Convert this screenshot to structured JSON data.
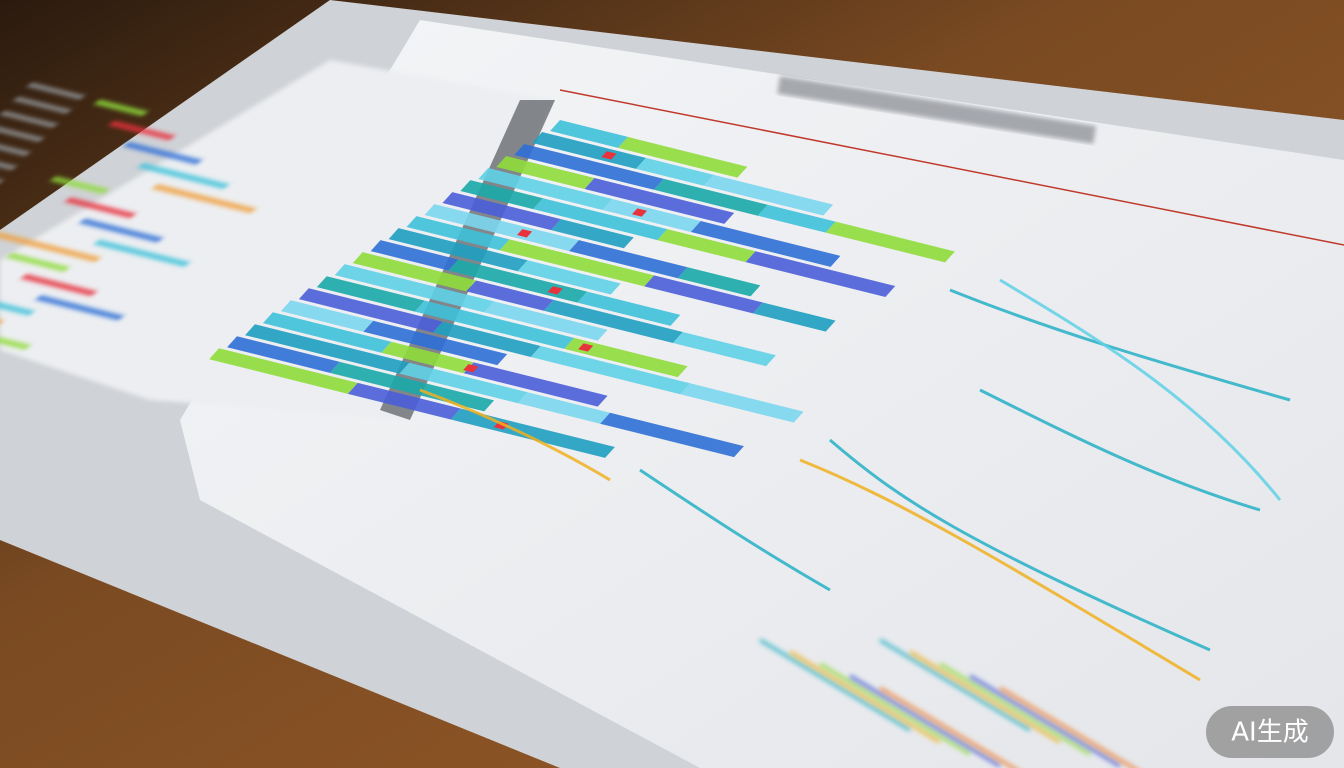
{
  "watermark": "AI生成"
}
